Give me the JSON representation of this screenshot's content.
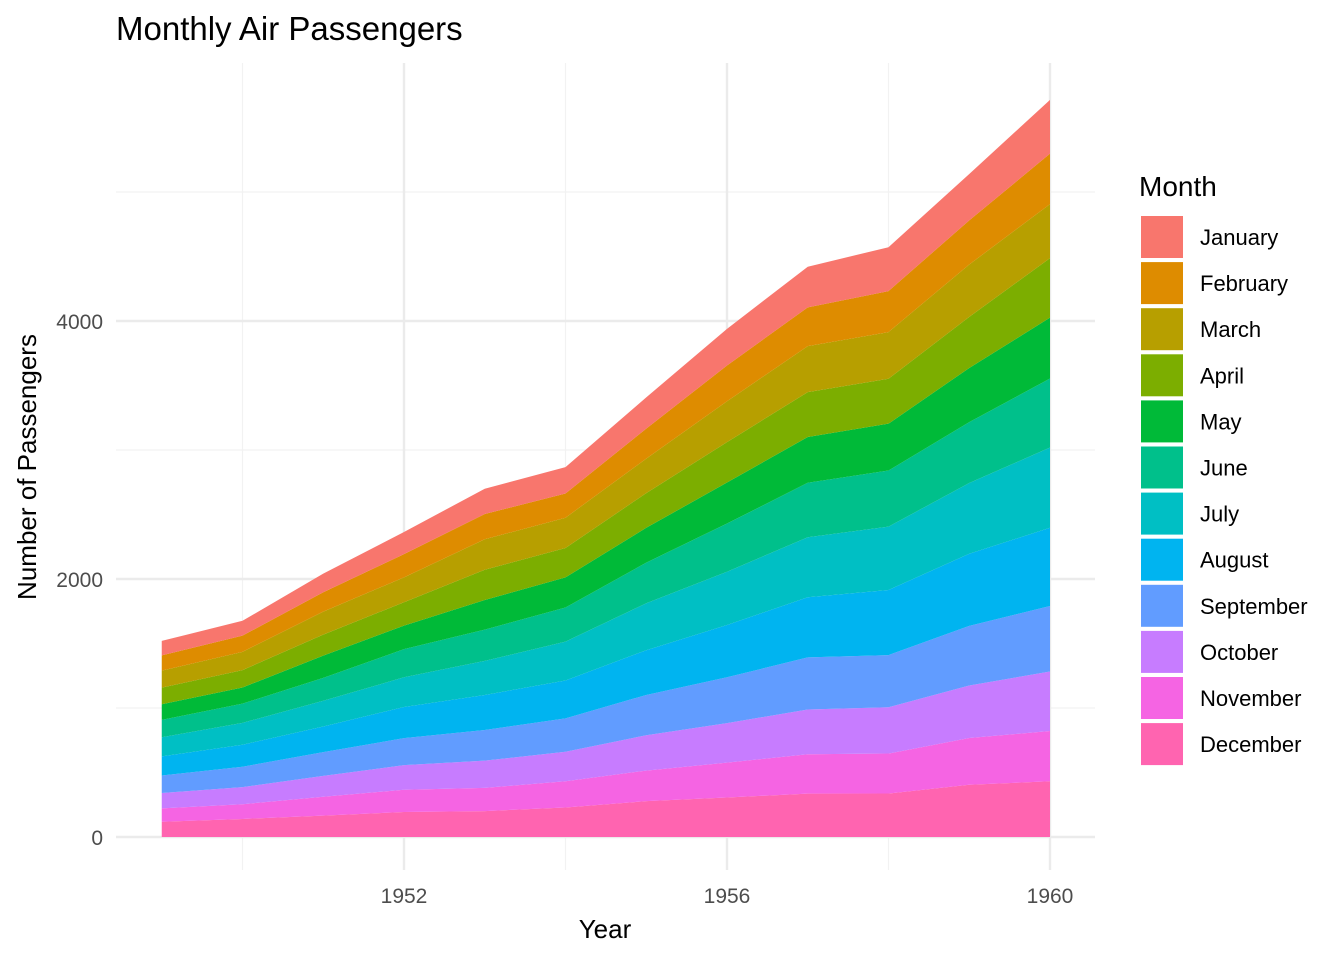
{
  "chart_data": {
    "type": "area",
    "stacked": true,
    "title": "Monthly Air Passengers",
    "xlabel": "Year",
    "ylabel": "Number of Passengers",
    "x": [
      1949,
      1950,
      1951,
      1952,
      1953,
      1954,
      1955,
      1956,
      1957,
      1958,
      1959,
      1960
    ],
    "xlim": [
      1948.4,
      1960.6
    ],
    "ylim": [
      -270,
      6000
    ],
    "xticks": [
      1952,
      1956,
      1960
    ],
    "xticks_minor": [
      1950,
      1954,
      1958
    ],
    "yticks": [
      0,
      2000,
      4000
    ],
    "yticks_minor": [
      1000,
      3000,
      5000
    ],
    "grid": true,
    "legend": {
      "title": "Month",
      "placement": "right"
    },
    "series": [
      {
        "name": "January",
        "color": "#F8766D",
        "values": [
          112,
          115,
          145,
          171,
          196,
          204,
          242,
          284,
          315,
          340,
          360,
          417
        ]
      },
      {
        "name": "February",
        "color": "#DE8C00",
        "values": [
          118,
          126,
          150,
          180,
          196,
          188,
          233,
          277,
          301,
          318,
          342,
          391
        ]
      },
      {
        "name": "March",
        "color": "#B79F00",
        "values": [
          132,
          141,
          178,
          193,
          236,
          235,
          267,
          317,
          356,
          362,
          406,
          419
        ]
      },
      {
        "name": "April",
        "color": "#7CAE00",
        "values": [
          129,
          135,
          163,
          181,
          235,
          227,
          269,
          313,
          348,
          348,
          396,
          461
        ]
      },
      {
        "name": "May",
        "color": "#00BA38",
        "values": [
          121,
          125,
          172,
          183,
          229,
          234,
          270,
          318,
          355,
          363,
          420,
          472
        ]
      },
      {
        "name": "June",
        "color": "#00C08B",
        "values": [
          135,
          149,
          178,
          218,
          243,
          264,
          315,
          374,
          422,
          435,
          472,
          535
        ]
      },
      {
        "name": "July",
        "color": "#00BFC4",
        "values": [
          148,
          170,
          199,
          230,
          264,
          302,
          364,
          413,
          465,
          491,
          548,
          622
        ]
      },
      {
        "name": "August",
        "color": "#00B4F0",
        "values": [
          148,
          170,
          199,
          242,
          272,
          293,
          347,
          405,
          467,
          505,
          559,
          606
        ]
      },
      {
        "name": "September",
        "color": "#619CFF",
        "values": [
          136,
          158,
          184,
          209,
          237,
          259,
          312,
          355,
          404,
          404,
          463,
          508
        ]
      },
      {
        "name": "October",
        "color": "#C77CFF",
        "values": [
          119,
          133,
          162,
          191,
          211,
          229,
          274,
          306,
          347,
          359,
          407,
          461
        ]
      },
      {
        "name": "November",
        "color": "#F564E3",
        "values": [
          104,
          114,
          146,
          172,
          180,
          203,
          237,
          271,
          305,
          310,
          362,
          390
        ]
      },
      {
        "name": "December",
        "color": "#FF64B0",
        "values": [
          118,
          140,
          166,
          194,
          201,
          229,
          278,
          306,
          336,
          337,
          405,
          432
        ]
      }
    ]
  }
}
